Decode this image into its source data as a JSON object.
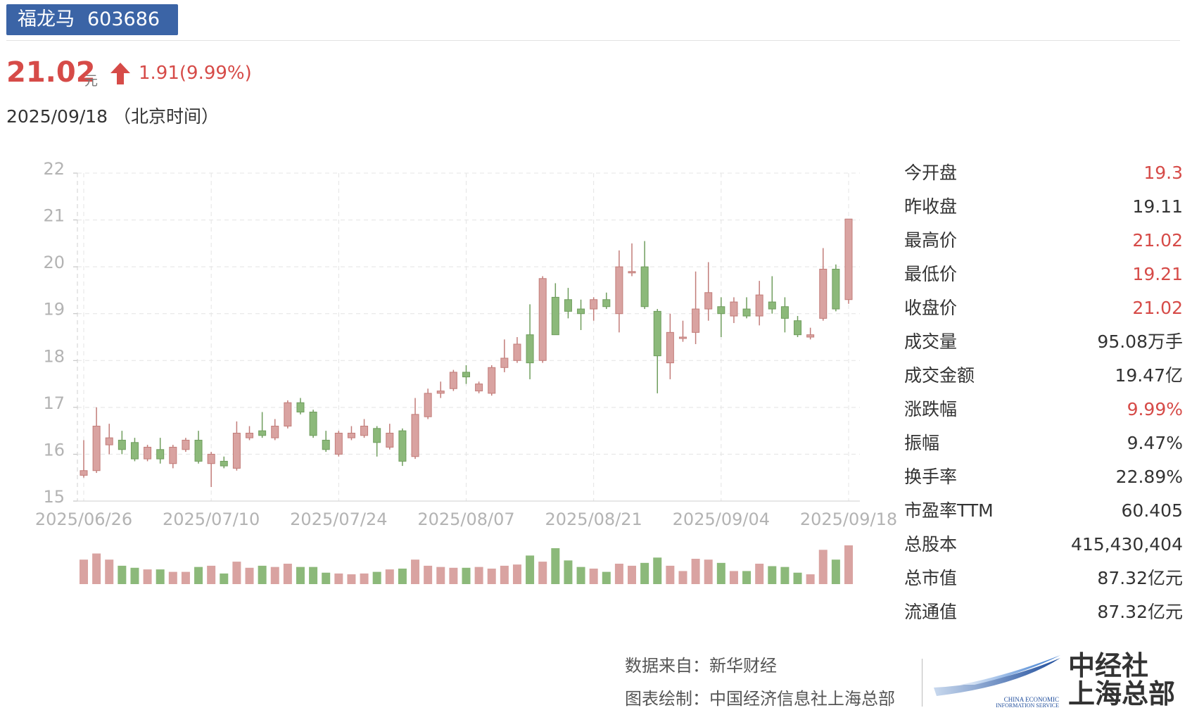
{
  "header": {
    "stock_name": "福龙马",
    "stock_code": "603686",
    "price": "21.02",
    "price_unit": "元",
    "change": "1.91(9.99%)",
    "date": "2025/09/18 （北京时间）"
  },
  "colors": {
    "up": "#d9a3a1",
    "down": "#8cb97a",
    "accent": "#d64b48",
    "badge": "#3b64a6"
  },
  "stats": [
    {
      "label": "今开盘",
      "value": "19.3",
      "color": "red"
    },
    {
      "label": "昨收盘",
      "value": "19.11",
      "color": "normal"
    },
    {
      "label": "最高价",
      "value": "21.02",
      "color": "red"
    },
    {
      "label": "最低价",
      "value": "19.21",
      "color": "red"
    },
    {
      "label": "收盘价",
      "value": "21.02",
      "color": "red"
    },
    {
      "label": "成交量",
      "value": "95.08万手",
      "color": "normal"
    },
    {
      "label": "成交金额",
      "value": "19.47亿",
      "color": "normal"
    },
    {
      "label": "涨跌幅",
      "value": "9.99%",
      "color": "red"
    },
    {
      "label": "振幅",
      "value": "9.47%",
      "color": "normal"
    },
    {
      "label": "换手率",
      "value": "22.89%",
      "color": "normal"
    },
    {
      "label": "市盈率TTM",
      "value": "60.405",
      "color": "normal"
    },
    {
      "label": "总股本",
      "value": "415,430,404",
      "color": "normal"
    },
    {
      "label": "总市值",
      "value": "87.32亿元",
      "color": "normal"
    },
    {
      "label": "流通值",
      "value": "87.32亿元",
      "color": "normal"
    }
  ],
  "footer": {
    "source": "数据来自：新华财经",
    "author": "图表绘制：中国经济信息社上海总部",
    "logo_line1": "中经社",
    "logo_line2": "上海总部",
    "logo_en1": "CHINA ECONOMIC",
    "logo_en2": "INFORMATION SERVICE"
  },
  "chart_data": {
    "type": "candlestick",
    "ylim": [
      15,
      22
    ],
    "yticks": [
      22,
      21,
      20,
      19,
      18,
      17,
      16,
      15
    ],
    "xtick_labels": [
      "2025/06/26",
      "2025/07/10",
      "2025/07/24",
      "2025/08/07",
      "2025/08/21",
      "2025/09/04",
      "2025/09/18"
    ],
    "xtick_indices": [
      0,
      10,
      20,
      30,
      40,
      50,
      60
    ],
    "grid": true,
    "candles": [
      {
        "o": 15.55,
        "c": 15.65,
        "h": 16.3,
        "l": 15.5
      },
      {
        "o": 15.65,
        "c": 16.6,
        "h": 17.0,
        "l": 15.6
      },
      {
        "o": 16.2,
        "c": 16.35,
        "h": 16.65,
        "l": 16.0
      },
      {
        "o": 16.3,
        "c": 16.1,
        "h": 16.5,
        "l": 16.0
      },
      {
        "o": 16.25,
        "c": 15.9,
        "h": 16.35,
        "l": 15.85
      },
      {
        "o": 15.9,
        "c": 16.15,
        "h": 16.2,
        "l": 15.85
      },
      {
        "o": 16.1,
        "c": 15.9,
        "h": 16.35,
        "l": 15.8
      },
      {
        "o": 15.8,
        "c": 16.15,
        "h": 16.2,
        "l": 15.7
      },
      {
        "o": 16.1,
        "c": 16.3,
        "h": 16.35,
        "l": 16.05
      },
      {
        "o": 16.3,
        "c": 15.85,
        "h": 16.5,
        "l": 15.8
      },
      {
        "o": 15.8,
        "c": 16.0,
        "h": 16.05,
        "l": 15.3
      },
      {
        "o": 15.85,
        "c": 15.75,
        "h": 15.95,
        "l": 15.7
      },
      {
        "o": 15.7,
        "c": 16.45,
        "h": 16.7,
        "l": 15.65
      },
      {
        "o": 16.35,
        "c": 16.45,
        "h": 16.6,
        "l": 16.3
      },
      {
        "o": 16.5,
        "c": 16.4,
        "h": 16.9,
        "l": 16.35
      },
      {
        "o": 16.35,
        "c": 16.6,
        "h": 16.75,
        "l": 16.3
      },
      {
        "o": 16.6,
        "c": 17.1,
        "h": 17.15,
        "l": 16.55
      },
      {
        "o": 17.1,
        "c": 16.9,
        "h": 17.2,
        "l": 16.85
      },
      {
        "o": 16.9,
        "c": 16.4,
        "h": 16.95,
        "l": 16.35
      },
      {
        "o": 16.3,
        "c": 16.1,
        "h": 16.5,
        "l": 16.05
      },
      {
        "o": 16.0,
        "c": 16.45,
        "h": 16.5,
        "l": 15.95
      },
      {
        "o": 16.35,
        "c": 16.45,
        "h": 16.6,
        "l": 16.3
      },
      {
        "o": 16.4,
        "c": 16.6,
        "h": 16.75,
        "l": 16.35
      },
      {
        "o": 16.55,
        "c": 16.25,
        "h": 16.6,
        "l": 15.95
      },
      {
        "o": 16.15,
        "c": 16.45,
        "h": 16.65,
        "l": 16.1
      },
      {
        "o": 16.5,
        "c": 15.85,
        "h": 16.55,
        "l": 15.75
      },
      {
        "o": 15.95,
        "c": 16.85,
        "h": 17.2,
        "l": 15.9
      },
      {
        "o": 16.8,
        "c": 17.3,
        "h": 17.4,
        "l": 16.75
      },
      {
        "o": 17.3,
        "c": 17.35,
        "h": 17.55,
        "l": 17.2
      },
      {
        "o": 17.4,
        "c": 17.75,
        "h": 17.8,
        "l": 17.35
      },
      {
        "o": 17.75,
        "c": 17.65,
        "h": 17.9,
        "l": 17.5
      },
      {
        "o": 17.35,
        "c": 17.5,
        "h": 17.55,
        "l": 17.3
      },
      {
        "o": 17.3,
        "c": 17.85,
        "h": 17.9,
        "l": 17.25
      },
      {
        "o": 17.85,
        "c": 18.05,
        "h": 18.45,
        "l": 17.75
      },
      {
        "o": 18.0,
        "c": 18.35,
        "h": 18.5,
        "l": 17.95
      },
      {
        "o": 18.55,
        "c": 17.95,
        "h": 19.2,
        "l": 17.6
      },
      {
        "o": 18.0,
        "c": 19.75,
        "h": 19.8,
        "l": 17.95
      },
      {
        "o": 19.35,
        "c": 18.55,
        "h": 19.65,
        "l": 18.55
      },
      {
        "o": 19.3,
        "c": 19.05,
        "h": 19.55,
        "l": 18.9
      },
      {
        "o": 19.1,
        "c": 19.0,
        "h": 19.3,
        "l": 18.65
      },
      {
        "o": 19.1,
        "c": 19.3,
        "h": 19.35,
        "l": 18.85
      },
      {
        "o": 19.3,
        "c": 19.15,
        "h": 19.45,
        "l": 19.1
      },
      {
        "o": 19.0,
        "c": 20.0,
        "h": 20.35,
        "l": 18.6
      },
      {
        "o": 19.9,
        "c": 19.9,
        "h": 20.5,
        "l": 19.8
      },
      {
        "o": 20.0,
        "c": 19.15,
        "h": 20.55,
        "l": 19.1
      },
      {
        "o": 19.05,
        "c": 18.1,
        "h": 19.1,
        "l": 17.3
      },
      {
        "o": 17.95,
        "c": 18.6,
        "h": 19.0,
        "l": 17.6
      },
      {
        "o": 18.5,
        "c": 18.5,
        "h": 18.85,
        "l": 18.4
      },
      {
        "o": 18.6,
        "c": 19.1,
        "h": 19.9,
        "l": 18.35
      },
      {
        "o": 19.1,
        "c": 19.45,
        "h": 20.1,
        "l": 18.85
      },
      {
        "o": 19.15,
        "c": 19.0,
        "h": 19.35,
        "l": 18.5
      },
      {
        "o": 18.95,
        "c": 19.25,
        "h": 19.35,
        "l": 18.8
      },
      {
        "o": 19.1,
        "c": 18.95,
        "h": 19.35,
        "l": 18.9
      },
      {
        "o": 18.95,
        "c": 19.4,
        "h": 19.7,
        "l": 18.75
      },
      {
        "o": 19.25,
        "c": 19.1,
        "h": 19.8,
        "l": 19.0
      },
      {
        "o": 19.15,
        "c": 18.9,
        "h": 19.35,
        "l": 18.6
      },
      {
        "o": 18.85,
        "c": 18.55,
        "h": 18.95,
        "l": 18.5
      },
      {
        "o": 18.5,
        "c": 18.55,
        "h": 18.7,
        "l": 18.45
      },
      {
        "o": 18.9,
        "c": 19.95,
        "h": 20.4,
        "l": 18.85
      },
      {
        "o": 19.95,
        "c": 19.1,
        "h": 20.05,
        "l": 19.05
      },
      {
        "o": 19.3,
        "c": 21.02,
        "h": 21.02,
        "l": 19.21
      }
    ],
    "volume_relative": [
      0.6,
      0.75,
      0.6,
      0.45,
      0.4,
      0.36,
      0.36,
      0.3,
      0.3,
      0.42,
      0.45,
      0.26,
      0.55,
      0.4,
      0.45,
      0.42,
      0.5,
      0.42,
      0.42,
      0.28,
      0.26,
      0.24,
      0.26,
      0.3,
      0.36,
      0.38,
      0.6,
      0.45,
      0.42,
      0.4,
      0.4,
      0.42,
      0.38,
      0.45,
      0.48,
      0.7,
      0.55,
      0.88,
      0.58,
      0.42,
      0.38,
      0.3,
      0.5,
      0.45,
      0.52,
      0.65,
      0.45,
      0.32,
      0.62,
      0.6,
      0.52,
      0.32,
      0.32,
      0.5,
      0.44,
      0.42,
      0.28,
      0.24,
      0.84,
      0.6,
      0.95
    ]
  }
}
